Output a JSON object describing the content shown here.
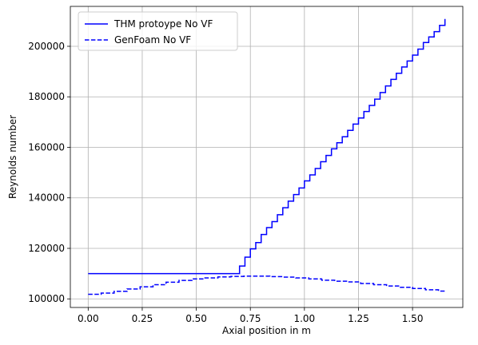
{
  "chart_data": {
    "type": "line",
    "title": "",
    "xlabel": "Axial position in m",
    "ylabel": "Reynolds number",
    "xlim": [
      -0.0825,
      1.7325
    ],
    "ylim": [
      96600,
      215800
    ],
    "xticks": [
      0.0,
      0.25,
      0.5,
      0.75,
      1.0,
      1.25,
      1.5
    ],
    "xtick_labels": [
      "0.00",
      "0.25",
      "0.50",
      "0.75",
      "1.00",
      "1.25",
      "1.50"
    ],
    "yticks": [
      100000,
      120000,
      140000,
      160000,
      180000,
      200000
    ],
    "ytick_labels": [
      "100000",
      "120000",
      "140000",
      "160000",
      "180000",
      "200000"
    ],
    "grid": true,
    "legend_position": "top-left",
    "series": [
      {
        "name": "THM protoype No VF",
        "color": "#0000ff",
        "style": "solid",
        "step": true,
        "x": [
          0.0,
          0.7,
          0.725,
          0.75,
          0.775,
          0.8,
          0.825,
          0.85,
          0.875,
          0.9,
          0.925,
          0.95,
          0.975,
          1.0,
          1.025,
          1.05,
          1.075,
          1.1,
          1.125,
          1.15,
          1.175,
          1.2,
          1.225,
          1.25,
          1.275,
          1.3,
          1.325,
          1.35,
          1.375,
          1.4,
          1.425,
          1.45,
          1.475,
          1.5,
          1.525,
          1.55,
          1.575,
          1.6,
          1.625,
          1.65
        ],
        "y": [
          110000,
          113000,
          116500,
          119800,
          122300,
          125500,
          128200,
          130600,
          133300,
          136100,
          138700,
          141300,
          143900,
          146700,
          149100,
          151600,
          154300,
          156800,
          159400,
          161800,
          164200,
          166700,
          169200,
          171600,
          174200,
          176600,
          179100,
          181700,
          184300,
          186900,
          189300,
          191800,
          194200,
          196500,
          198900,
          201500,
          203700,
          205800,
          208300,
          210800
        ]
      },
      {
        "name": "GenFoam No VF",
        "color": "#0000ff",
        "style": "dashed",
        "step": true,
        "x": [
          0.0,
          0.06,
          0.12,
          0.18,
          0.24,
          0.3,
          0.36,
          0.42,
          0.48,
          0.54,
          0.6,
          0.66,
          0.72,
          0.78,
          0.84,
          0.9,
          0.96,
          1.02,
          1.08,
          1.14,
          1.2,
          1.26,
          1.32,
          1.38,
          1.44,
          1.5,
          1.56,
          1.62,
          1.65
        ],
        "y": [
          101800,
          102300,
          103000,
          103900,
          104800,
          105600,
          106600,
          107300,
          107900,
          108300,
          108700,
          108900,
          109000,
          109000,
          108800,
          108600,
          108300,
          107900,
          107400,
          107000,
          106700,
          106100,
          105600,
          105100,
          104600,
          104100,
          103600,
          103100,
          102600
        ]
      }
    ]
  }
}
